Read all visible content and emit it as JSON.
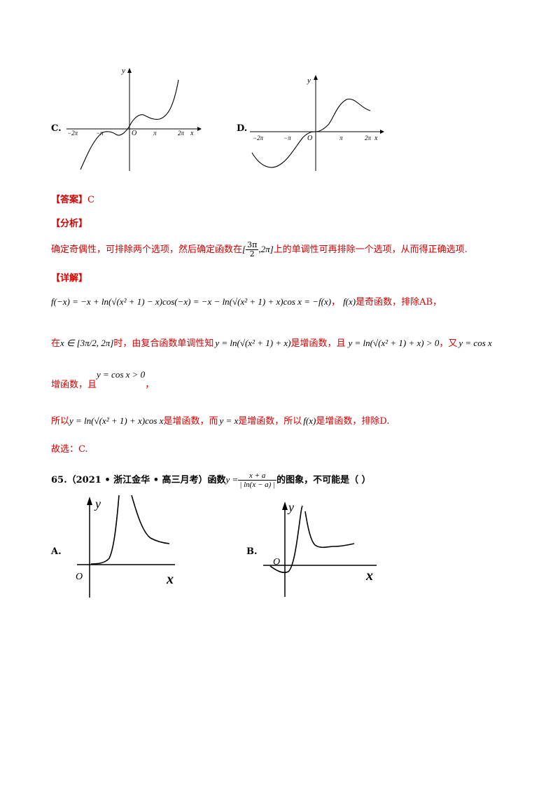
{
  "options_prev": {
    "c_label": "C.",
    "d_label": "D.",
    "axis_y": "y",
    "axis_x": "x",
    "origin": "O",
    "ticks": [
      "−2π",
      "−π",
      "π",
      "2π"
    ]
  },
  "answer": {
    "bracket_label": "【答案】",
    "value": "C"
  },
  "analysis": {
    "label": "【分析】",
    "text_before": "确定奇偶性，可排除两个选项，然后确定函数在",
    "interval_num": "3π",
    "interval_den": "2",
    "interval_tail": ",2π]",
    "text_after": "上的单调性可再排除一个选项，从而得正确选项."
  },
  "detail": {
    "label": "【详解】",
    "line1_math": "f(−x) = −x + ln(√(x² + 1) − x)cos(−x) = −x − ln(√(x² + 1) + x)cos x = −f(x)",
    "line1_comma": "，",
    "line1_fx": "f(x)",
    "line1_text": "是奇函数，排除AB，",
    "line2_pre": "在",
    "line2_interval": "x ∈ [3π/2, 2π]",
    "line2_mid": "时，由复合函数单调性知",
    "line2_func": "y = ln(√(x² + 1) + x)",
    "line2_inc": "是增函数，且",
    "line2_pos": "y = ln(√(x² + 1) + x) > 0",
    "line2_and": "，又",
    "line2_cos": "y = cos x",
    "line3_text": "增函数，且",
    "line3_math": "y = cos x > 0",
    "line3_comma": "，",
    "line4_pre": "所以",
    "line4_func": "y = ln(√(x² + 1) + x)cos x",
    "line4_inc": "是增函数，而",
    "line4_yx": "y = x",
    "line4_inc2": "是增函数，所以",
    "line4_fx": "f(x)",
    "line4_tail": "是增函数，排除D.",
    "conclusion": "故选：C."
  },
  "question": {
    "number": "65.",
    "source": "（2021 • 浙江金华 • 高三月考）函数",
    "func_y": "y =",
    "func_num": "x + a",
    "func_den": "| ln(x − a) |",
    "tail": "的图象，不可能是（      ）",
    "a_label": "A.",
    "b_label": "B.",
    "axis_y": "y",
    "axis_x": "x",
    "origin": "O"
  }
}
